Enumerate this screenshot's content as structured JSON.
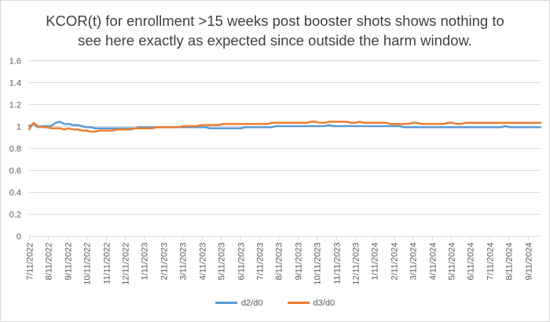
{
  "chart_data": {
    "type": "line",
    "title_lines": [
      "KCOR(t) for enrollment >15 weeks post booster shots shows nothing to",
      "see here exactly as expected since outside the harm window."
    ],
    "xlabel": "",
    "ylabel": "",
    "ylim": [
      0,
      1.6
    ],
    "yticks": [
      "0",
      "0.2",
      "0.4",
      "0.6",
      "0.8",
      "1",
      "1.2",
      "1.4",
      "1.6"
    ],
    "grid": true,
    "legend_position": "bottom",
    "x_tick_labels": [
      "7/11/2022",
      "8/11/2022",
      "9/11/2022",
      "10/11/2022",
      "11/11/2022",
      "12/11/2022",
      "1/11/2023",
      "2/11/2023",
      "3/11/2023",
      "4/11/2023",
      "5/11/2023",
      "6/11/2023",
      "7/11/2023",
      "8/11/2023",
      "9/11/2023",
      "10/11/2023",
      "11/11/2023",
      "12/11/2023",
      "1/11/2024",
      "2/11/2024",
      "3/11/2024",
      "4/11/2024",
      "5/11/2024",
      "6/11/2024",
      "7/11/2024",
      "8/11/2024",
      "9/11/2024"
    ],
    "weeks_per_tick": 4.35,
    "x_week_range": [
      0,
      116
    ],
    "series": [
      {
        "name": "d2/d0",
        "color": "#5b9bd5",
        "values": [
          1.0,
          1.02,
          0.99,
          1.0,
          1.0,
          1.0,
          1.03,
          1.04,
          1.02,
          1.02,
          1.01,
          1.01,
          1.0,
          0.99,
          0.99,
          0.98,
          0.98,
          0.98,
          0.98,
          0.98,
          0.98,
          0.98,
          0.98,
          0.98,
          0.98,
          0.99,
          0.99,
          0.99,
          0.99,
          0.99,
          0.99,
          0.99,
          0.99,
          0.99,
          0.99,
          0.99,
          0.99,
          0.99,
          0.99,
          0.99,
          0.99,
          0.98,
          0.98,
          0.98,
          0.98,
          0.98,
          0.98,
          0.98,
          0.98,
          0.99,
          0.99,
          0.99,
          0.99,
          0.99,
          0.99,
          0.99,
          1.0,
          1.0,
          1.0,
          1.0,
          1.0,
          1.0,
          1.0,
          1.0,
          1.0,
          1.0,
          1.0,
          1.0,
          1.01,
          1.0,
          1.0,
          1.0,
          1.0,
          1.0,
          1.0,
          1.0,
          1.0,
          1.0,
          1.0,
          1.0,
          1.0,
          1.0,
          1.0,
          1.0,
          1.0,
          0.99,
          0.99,
          0.99,
          0.99,
          0.99,
          0.99,
          0.99,
          0.99,
          0.99,
          0.99,
          0.99,
          0.99,
          0.99,
          0.99,
          0.99,
          0.99,
          0.99,
          0.99,
          0.99,
          0.99,
          0.99,
          0.99,
          0.99,
          1.0,
          0.99,
          0.99,
          0.99,
          0.99,
          0.99,
          0.99,
          0.99,
          0.99
        ]
      },
      {
        "name": "d3/d0",
        "color": "#ed7d31",
        "values": [
          0.97,
          1.03,
          1.0,
          0.99,
          0.99,
          0.98,
          0.98,
          0.98,
          0.97,
          0.98,
          0.97,
          0.97,
          0.96,
          0.96,
          0.95,
          0.95,
          0.96,
          0.96,
          0.96,
          0.96,
          0.97,
          0.97,
          0.97,
          0.97,
          0.98,
          0.98,
          0.98,
          0.98,
          0.98,
          0.99,
          0.99,
          0.99,
          0.99,
          0.99,
          0.99,
          1.0,
          1.0,
          1.0,
          1.0,
          1.01,
          1.01,
          1.01,
          1.01,
          1.01,
          1.02,
          1.02,
          1.02,
          1.02,
          1.02,
          1.02,
          1.02,
          1.02,
          1.02,
          1.02,
          1.02,
          1.03,
          1.03,
          1.03,
          1.03,
          1.03,
          1.03,
          1.03,
          1.03,
          1.03,
          1.04,
          1.04,
          1.03,
          1.03,
          1.04,
          1.04,
          1.04,
          1.04,
          1.04,
          1.03,
          1.03,
          1.04,
          1.03,
          1.03,
          1.03,
          1.03,
          1.03,
          1.03,
          1.02,
          1.02,
          1.02,
          1.02,
          1.02,
          1.03,
          1.03,
          1.02,
          1.02,
          1.02,
          1.02,
          1.02,
          1.02,
          1.03,
          1.03,
          1.02,
          1.02,
          1.03,
          1.03,
          1.03,
          1.03,
          1.03,
          1.03,
          1.03,
          1.03,
          1.03,
          1.03,
          1.03,
          1.03,
          1.03,
          1.03,
          1.03,
          1.03,
          1.03,
          1.03
        ]
      }
    ]
  }
}
